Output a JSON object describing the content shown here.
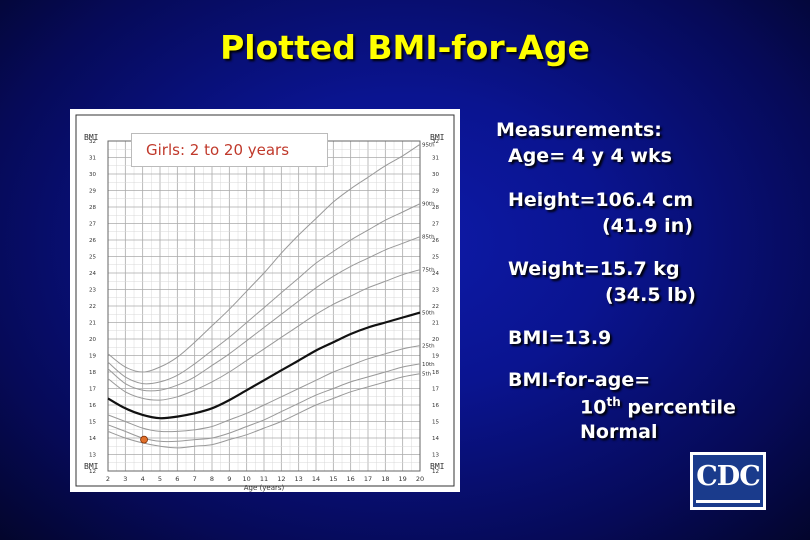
{
  "slide": {
    "title": "Plotted BMI-for-Age"
  },
  "measurements": {
    "heading": "Measurements:",
    "age": "Age= 4 y 4 wks",
    "height_1": "Height=106.4 cm",
    "height_2": "(41.9 in)",
    "weight_1": "Weight=15.7 kg",
    "weight_2": "(34.5 lb)",
    "bmi": "BMI=13.9",
    "bfa_1": "BMI-for-age=",
    "bfa_num": "10",
    "bfa_sup": "th",
    "bfa_rest": " percentile",
    "bfa_3": "Normal"
  },
  "logo": {
    "text": "CDC"
  },
  "chart_data": {
    "type": "line",
    "subtitle": "Girls: 2 to 20 years",
    "xlabel": "Age (years)",
    "ylabel": "BMI",
    "ylabel_right": "BMI",
    "xlim": [
      2,
      20
    ],
    "ylim": [
      12,
      32
    ],
    "x_ticks": [
      2,
      3,
      4,
      5,
      6,
      7,
      8,
      9,
      10,
      11,
      12,
      13,
      14,
      15,
      16,
      17,
      18,
      19,
      20
    ],
    "y_ticks_left": [
      12,
      13,
      14,
      15,
      16,
      17,
      18,
      19,
      20,
      21,
      22,
      23,
      24,
      25,
      26,
      27,
      28,
      29,
      30,
      31,
      32
    ],
    "y_ticks_right": [
      12,
      13,
      14,
      15,
      16,
      17,
      18,
      19,
      20,
      21,
      22,
      23,
      24,
      25,
      26,
      27,
      28,
      29,
      30,
      31,
      32
    ],
    "grid": true,
    "colors": {
      "curve": "#999999",
      "median": "#111111",
      "point": "#e0702a",
      "point_edge": "#7a2a00"
    },
    "series": [
      {
        "name": "95th",
        "x": [
          2,
          3,
          4,
          5,
          6,
          7,
          8,
          9,
          10,
          11,
          12,
          13,
          14,
          15,
          16,
          17,
          18,
          19,
          20
        ],
        "values": [
          19.1,
          18.3,
          18.0,
          18.3,
          18.9,
          19.8,
          20.8,
          21.8,
          22.9,
          24.0,
          25.2,
          26.3,
          27.3,
          28.3,
          29.1,
          29.8,
          30.5,
          31.1,
          31.8
        ]
      },
      {
        "name": "90th",
        "x": [
          2,
          3,
          4,
          5,
          6,
          7,
          8,
          9,
          10,
          11,
          12,
          13,
          14,
          15,
          16,
          17,
          18,
          19,
          20
        ],
        "values": [
          18.6,
          17.7,
          17.3,
          17.4,
          17.8,
          18.5,
          19.3,
          20.1,
          21.0,
          21.9,
          22.8,
          23.7,
          24.6,
          25.3,
          26.0,
          26.6,
          27.2,
          27.7,
          28.2
        ]
      },
      {
        "name": "85th",
        "x": [
          2,
          3,
          4,
          5,
          6,
          7,
          8,
          9,
          10,
          11,
          12,
          13,
          14,
          15,
          16,
          17,
          18,
          19,
          20
        ],
        "values": [
          18.2,
          17.3,
          16.9,
          16.9,
          17.2,
          17.7,
          18.4,
          19.1,
          19.9,
          20.7,
          21.5,
          22.3,
          23.1,
          23.8,
          24.4,
          24.9,
          25.4,
          25.8,
          26.2
        ]
      },
      {
        "name": "75th",
        "x": [
          2,
          3,
          4,
          5,
          6,
          7,
          8,
          9,
          10,
          11,
          12,
          13,
          14,
          15,
          16,
          17,
          18,
          19,
          20
        ],
        "values": [
          17.6,
          16.8,
          16.4,
          16.3,
          16.5,
          16.9,
          17.4,
          18.0,
          18.7,
          19.4,
          20.1,
          20.8,
          21.5,
          22.1,
          22.6,
          23.1,
          23.5,
          23.9,
          24.2
        ]
      },
      {
        "name": "50th",
        "x": [
          2,
          3,
          4,
          5,
          6,
          7,
          8,
          9,
          10,
          11,
          12,
          13,
          14,
          15,
          16,
          17,
          18,
          19,
          20
        ],
        "values": [
          16.4,
          15.8,
          15.4,
          15.2,
          15.3,
          15.5,
          15.8,
          16.3,
          16.9,
          17.5,
          18.1,
          18.7,
          19.3,
          19.8,
          20.3,
          20.7,
          21.0,
          21.3,
          21.6
        ]
      },
      {
        "name": "25th",
        "x": [
          2,
          3,
          4,
          5,
          6,
          7,
          8,
          9,
          10,
          11,
          12,
          13,
          14,
          15,
          16,
          17,
          18,
          19,
          20
        ],
        "values": [
          15.4,
          15.0,
          14.6,
          14.4,
          14.4,
          14.5,
          14.7,
          15.1,
          15.5,
          16.0,
          16.5,
          17.0,
          17.5,
          18.0,
          18.4,
          18.8,
          19.1,
          19.4,
          19.6
        ]
      },
      {
        "name": "10th",
        "x": [
          2,
          3,
          4,
          5,
          6,
          7,
          8,
          9,
          10,
          11,
          12,
          13,
          14,
          15,
          16,
          17,
          18,
          19,
          20
        ],
        "values": [
          14.8,
          14.4,
          14.0,
          13.8,
          13.8,
          13.9,
          14.0,
          14.3,
          14.7,
          15.1,
          15.6,
          16.1,
          16.6,
          17.0,
          17.4,
          17.7,
          18.0,
          18.3,
          18.5
        ]
      },
      {
        "name": "5th",
        "x": [
          2,
          3,
          4,
          5,
          6,
          7,
          8,
          9,
          10,
          11,
          12,
          13,
          14,
          15,
          16,
          17,
          18,
          19,
          20
        ],
        "values": [
          14.4,
          14.0,
          13.7,
          13.5,
          13.4,
          13.5,
          13.6,
          13.9,
          14.2,
          14.6,
          15.0,
          15.5,
          16.0,
          16.4,
          16.8,
          17.1,
          17.4,
          17.7,
          17.9
        ]
      }
    ],
    "plotted_point": {
      "x": 4.08,
      "y": 13.9
    }
  }
}
